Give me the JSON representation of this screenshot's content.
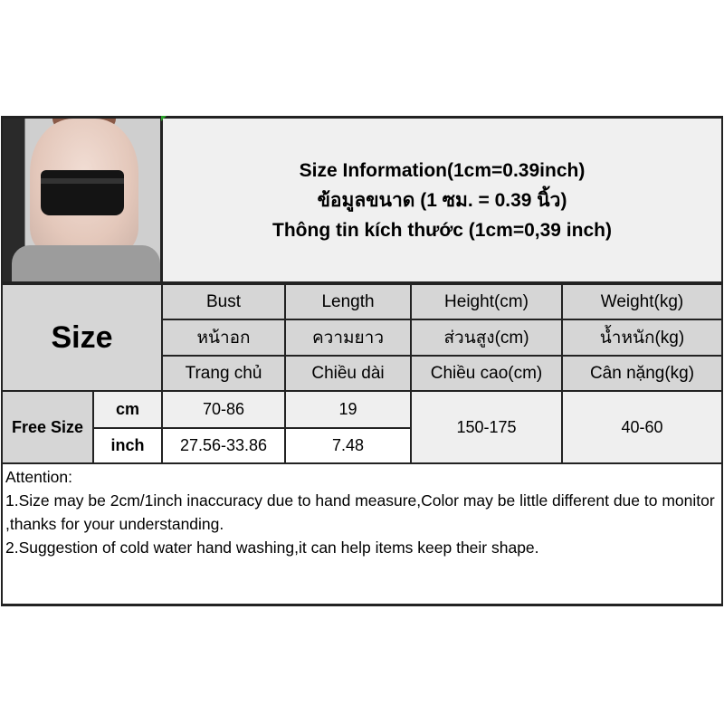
{
  "title": {
    "line1": "Size Information(1cm=0.39inch)",
    "line2": "ข้อมูลขนาด (1 ซม. = 0.39 นิ้ว)",
    "line3": "Thông tin kích thước (1cm=0,39 inch)"
  },
  "table": {
    "size_label": "Size",
    "headers": [
      [
        "Bust",
        "Length",
        "Height(cm)",
        "Weight(kg)"
      ],
      [
        "หน้าอก",
        "ความยาว",
        "ส่วนสูง(cm)",
        "น้ำหนัก(kg)"
      ],
      [
        "Trang chủ",
        "Chiều dài",
        "Chiều cao(cm)",
        "Cân nặng(kg)"
      ]
    ],
    "row": {
      "size": "Free Size",
      "units": [
        "cm",
        "inch"
      ],
      "bust": [
        "70-86",
        "27.56-33.86"
      ],
      "length": [
        "19",
        "7.48"
      ],
      "height": "150-175",
      "weight": "40-60"
    }
  },
  "attention": {
    "heading": "Attention:",
    "line1": "1.Size may be 2cm/1inch inaccuracy due to hand measure,Color may be little different due to monitor ,thanks for your understanding.",
    "line2": "2.Suggestion of cold water hand washing,it can help items keep their shape."
  }
}
